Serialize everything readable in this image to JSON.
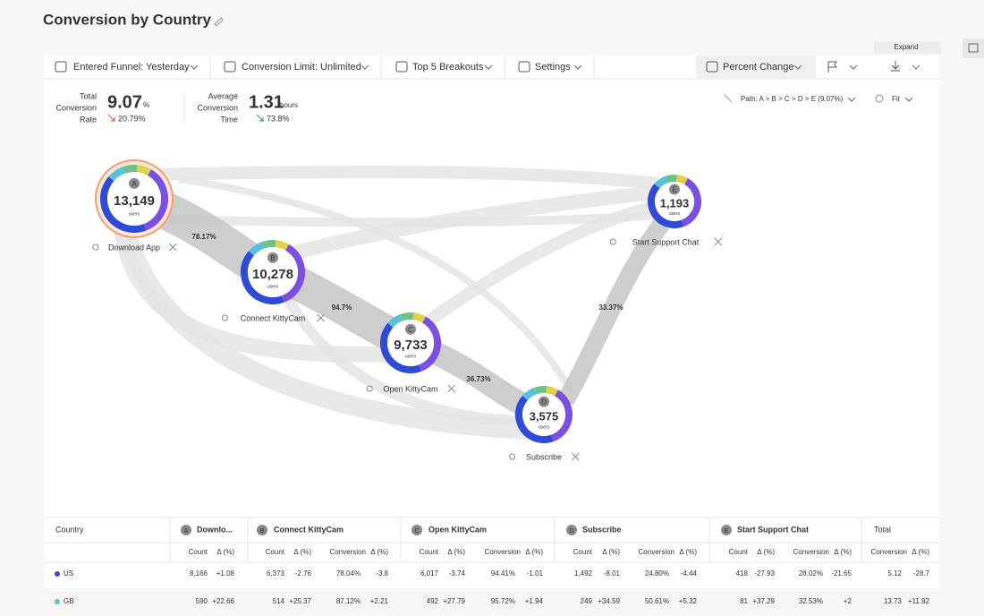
{
  "header": {
    "title": "Conversion by Country",
    "expand": "Expand"
  },
  "toolbar": [
    "Entered Funnel: Yesterday",
    "Conversion Limit: Unlimited",
    "Top 5 Breakouts",
    "Settings",
    "Percent Change"
  ],
  "metrics": [
    {
      "label": [
        "Total",
        "Conversion",
        "Rate"
      ],
      "value": "9.07",
      "unit": "%",
      "change": "20.79%"
    },
    {
      "label": [
        "Average",
        "Conversion",
        "Time"
      ],
      "value": "1.31",
      "unit": "hours",
      "change": "73.8%"
    }
  ],
  "path_control": "Path: A > B > C > D > E (9.07%)",
  "fit": "Fit",
  "nodes": [
    {
      "letter": "A",
      "count": "13,149",
      "unit": "users",
      "label": "Download App"
    },
    {
      "letter": "B",
      "count": "10,278",
      "unit": "users",
      "label": "Connect KittyCam"
    },
    {
      "letter": "C",
      "count": "9,733",
      "unit": "users",
      "label": "Open KittyCam"
    },
    {
      "letter": "D",
      "count": "3,575",
      "unit": "users",
      "label": "Subscribe"
    },
    {
      "letter": "E",
      "count": "1,193",
      "unit": "users",
      "label": "Start Support Chat"
    }
  ],
  "edges": [
    "78.17%",
    "94.7%",
    "36.73%",
    "33.37%"
  ],
  "table": {
    "country_header": "Country",
    "groups": [
      {
        "letter": "A",
        "label": "Downlo..."
      },
      {
        "letter": "B",
        "label": "Connect KittyCam"
      },
      {
        "letter": "C",
        "label": "Open KittyCam"
      },
      {
        "letter": "D",
        "label": "Subscribe"
      },
      {
        "letter": "E",
        "label": "Start Support Chat"
      }
    ],
    "total_header": "Total",
    "subheaders": [
      "Count",
      "Δ (%)",
      "Count",
      "Δ (%)",
      "Conversion",
      "Δ (%)",
      "Count",
      "Δ (%)",
      "Conversion",
      "Δ (%)",
      "Count",
      "Δ (%)",
      "Conversion",
      "Δ (%)",
      "Count",
      "Δ (%)",
      "Conversion",
      "Δ (%)",
      "Conversion",
      "Δ (%)"
    ],
    "rows": [
      {
        "country": "US",
        "cells": [
          "8,166",
          "+1.08",
          "6,373",
          "-2.76",
          "78.04%",
          "-3.8",
          "6,017",
          "-3.74",
          "94.41%",
          "-1.01",
          "1,492",
          "-8.01",
          "24.80%",
          "-4.44",
          "418",
          "-27.93",
          "28.02%",
          "-21.65",
          "5.12",
          "-28.7"
        ]
      },
      {
        "country": "GB",
        "cells": [
          "590",
          "+22.66",
          "514",
          "+25.37",
          "87.12%",
          "+2.21",
          "492",
          "+27.79",
          "95.72%",
          "+1.94",
          "249",
          "+34.59",
          "50.61%",
          "+5.32",
          "81",
          "+37.29",
          "32.53%",
          "+2",
          "13.73",
          "+11.92"
        ]
      }
    ]
  }
}
